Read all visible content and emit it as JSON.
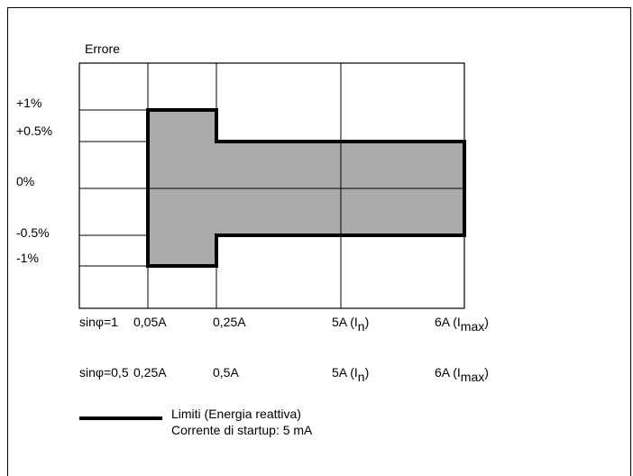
{
  "title": "Errore",
  "y_ticks": [
    "+1%",
    "+0.5%",
    "0%",
    "-0.5%",
    "-1%"
  ],
  "rows": [
    {
      "label": "sinφ=1",
      "columns": [
        {
          "main": "0,05A",
          "sub": ""
        },
        {
          "main": "0,25A",
          "sub": ""
        },
        {
          "main": "5A (I",
          "sub": "n",
          "tail": ")"
        },
        {
          "main": "6A (I",
          "sub": "max",
          "tail": ")"
        }
      ]
    },
    {
      "label": "sinφ=0,5",
      "columns": [
        {
          "main": "0,25A",
          "sub": ""
        },
        {
          "main": "0,5A",
          "sub": ""
        },
        {
          "main": "5A (I",
          "sub": "n",
          "tail": ")"
        },
        {
          "main": "6A (I",
          "sub": "max",
          "tail": ")"
        }
      ]
    }
  ],
  "legend": {
    "line1": "Limiti (Energia reattiva)",
    "line2": "Corrente di startup: 5 mA"
  },
  "colors": {
    "fill": "#aaaaaa",
    "outline": "#000000",
    "grid": "#000000"
  }
}
